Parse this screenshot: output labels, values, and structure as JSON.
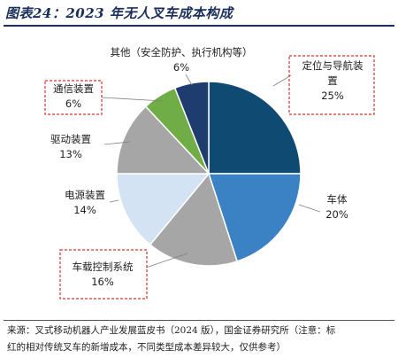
{
  "page": {
    "title": "图表24：2023 年无人叉车成本构成",
    "source_line1": "来源：叉式移动机器人产业发展蓝皮书（2024 版），国金证券研究所（注意：标",
    "source_line2": "红的相对传统叉车的新增成本，不同类型成本差异较大，仅供参考）"
  },
  "chart_data": {
    "type": "pie",
    "title": "图表24：2023 年无人叉车成本构成",
    "start": "12 o'clock, clockwise",
    "slices": [
      {
        "label": "定位与导航装置",
        "label_lines": [
          "定位与导航装",
          "置"
        ],
        "value": 25,
        "pct": "25%",
        "color": "#0f4a73",
        "highlight": true
      },
      {
        "label": "车体",
        "label_lines": [
          "车体"
        ],
        "value": 20,
        "pct": "20%",
        "color": "#3b82c4",
        "highlight": false
      },
      {
        "label": "车载控制系统",
        "label_lines": [
          "车载控制系统"
        ],
        "value": 16,
        "pct": "16%",
        "color": "#a6a6a6",
        "highlight": true
      },
      {
        "label": "电源装置",
        "label_lines": [
          "电源装置"
        ],
        "value": 14,
        "pct": "14%",
        "color": "#d3e3f3",
        "highlight": false
      },
      {
        "label": "驱动装置",
        "label_lines": [
          "驱动装置"
        ],
        "value": 13,
        "pct": "13%",
        "color": "#a6a6a6",
        "highlight": false
      },
      {
        "label": "通信装置",
        "label_lines": [
          "通信装置"
        ],
        "value": 6,
        "pct": "6%",
        "color": "#70ad47",
        "highlight": true
      },
      {
        "label": "其他（安全防护、执行机构等）",
        "label_lines": [
          "其他（安全防护、执行机构等）"
        ],
        "value": 6,
        "pct": "6%",
        "color": "#1f3c6e",
        "highlight": false
      }
    ],
    "colors": {
      "highlight_border": "#d9332e",
      "leader_line": "#7f7f7f",
      "slice_stroke": "#ffffff"
    }
  }
}
